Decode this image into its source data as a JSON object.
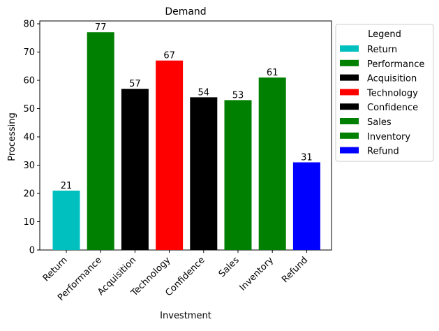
{
  "chart_data": {
    "type": "bar",
    "title": "Demand",
    "xlabel": "Investment",
    "ylabel": "Processing",
    "categories": [
      "Return",
      "Performance",
      "Acquisition",
      "Technology",
      "Confidence",
      "Sales",
      "Inventory",
      "Refund"
    ],
    "values": [
      21,
      77,
      57,
      67,
      54,
      53,
      61,
      31
    ],
    "colors": [
      "#00bfbf",
      "#008000",
      "#000000",
      "#ff0000",
      "#000000",
      "#008000",
      "#008000",
      "#0000ff"
    ],
    "data_labels": [
      "21",
      "77",
      "57",
      "67",
      "54",
      "53",
      "61",
      "31"
    ],
    "yticks": [
      0,
      10,
      20,
      30,
      40,
      50,
      60,
      70,
      80
    ],
    "ylim": [
      0,
      81
    ],
    "grid": false,
    "legend": {
      "title": "Legend",
      "placement": "outside-right",
      "entries": [
        "Return",
        "Performance",
        "Acquisition",
        "Technology",
        "Confidence",
        "Sales",
        "Inventory",
        "Refund"
      ]
    }
  }
}
